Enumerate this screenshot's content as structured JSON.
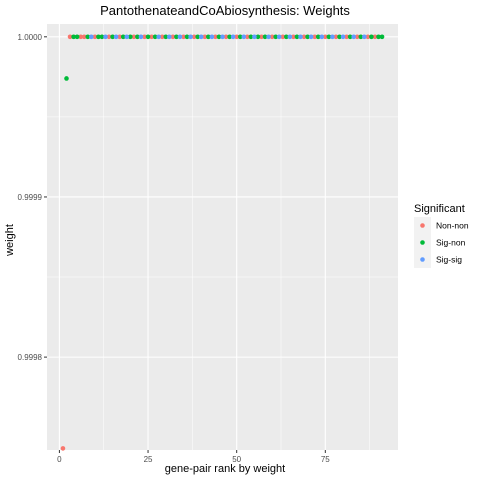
{
  "chart_data": {
    "type": "scatter",
    "title": "PantothenateandCoAbiosynthesis: Weights",
    "xlabel": "gene-pair rank by weight",
    "ylabel": "weight",
    "xlim": [
      -3.5,
      95.5
    ],
    "ylim": [
      0.999742,
      1.000008
    ],
    "x_ticks": [
      0,
      25,
      50,
      75
    ],
    "x_tick_labels": [
      "0",
      "25",
      "50",
      "75"
    ],
    "y_ticks": [
      0.9998,
      0.9999,
      1.0
    ],
    "y_tick_labels": [
      "0.9998",
      "0.9999",
      "1.0000"
    ],
    "grid": true,
    "legend": {
      "title": "Significant",
      "position": "right"
    },
    "series": [
      {
        "name": "Non-non",
        "color": "#F8766D",
        "x": [
          1,
          3,
          6,
          7,
          10,
          14,
          17,
          21,
          24,
          26,
          29,
          32,
          35,
          38,
          41,
          44,
          47,
          50,
          53,
          57,
          60,
          63,
          66,
          69,
          72,
          75,
          78,
          81,
          84,
          87,
          89
        ],
        "y": [
          0.999743,
          1.0,
          1.0,
          1.0,
          1.0,
          1.0,
          1.0,
          1.0,
          1.0,
          1.0,
          1.0,
          1.0,
          1.0,
          1.0,
          1.0,
          1.0,
          1.0,
          1.0,
          1.0,
          1.0,
          1.0,
          1.0,
          1.0,
          1.0,
          1.0,
          1.0,
          1.0,
          1.0,
          1.0,
          1.0,
          1.0
        ]
      },
      {
        "name": "Sig-non",
        "color": "#00BA38",
        "x": [
          2,
          4,
          5,
          8,
          11,
          12,
          15,
          18,
          20,
          22,
          25,
          27,
          30,
          33,
          36,
          39,
          42,
          45,
          48,
          51,
          54,
          56,
          58,
          61,
          64,
          67,
          70,
          73,
          76,
          79,
          82,
          85,
          88,
          90,
          91
        ],
        "y": [
          0.999974,
          1.0,
          1.0,
          1.0,
          1.0,
          1.0,
          1.0,
          1.0,
          1.0,
          1.0,
          1.0,
          1.0,
          1.0,
          1.0,
          1.0,
          1.0,
          1.0,
          1.0,
          1.0,
          1.0,
          1.0,
          1.0,
          1.0,
          1.0,
          1.0,
          1.0,
          1.0,
          1.0,
          1.0,
          1.0,
          1.0,
          1.0,
          1.0,
          1.0,
          1.0
        ]
      },
      {
        "name": "Sig-sig",
        "color": "#619CFF",
        "x": [
          9,
          13,
          16,
          19,
          23,
          28,
          31,
          34,
          37,
          40,
          43,
          46,
          49,
          52,
          55,
          59,
          62,
          65,
          68,
          71,
          74,
          77,
          80,
          83,
          86
        ],
        "y": [
          1.0,
          1.0,
          1.0,
          1.0,
          1.0,
          1.0,
          1.0,
          1.0,
          1.0,
          1.0,
          1.0,
          1.0,
          1.0,
          1.0,
          1.0,
          1.0,
          1.0,
          1.0,
          1.0,
          1.0,
          1.0,
          1.0,
          1.0,
          1.0,
          1.0
        ]
      }
    ]
  },
  "colors": {
    "panel_background": "#EBEBEB",
    "grid_major": "#FFFFFF",
    "legend_key_background": "#F2F2F2"
  }
}
